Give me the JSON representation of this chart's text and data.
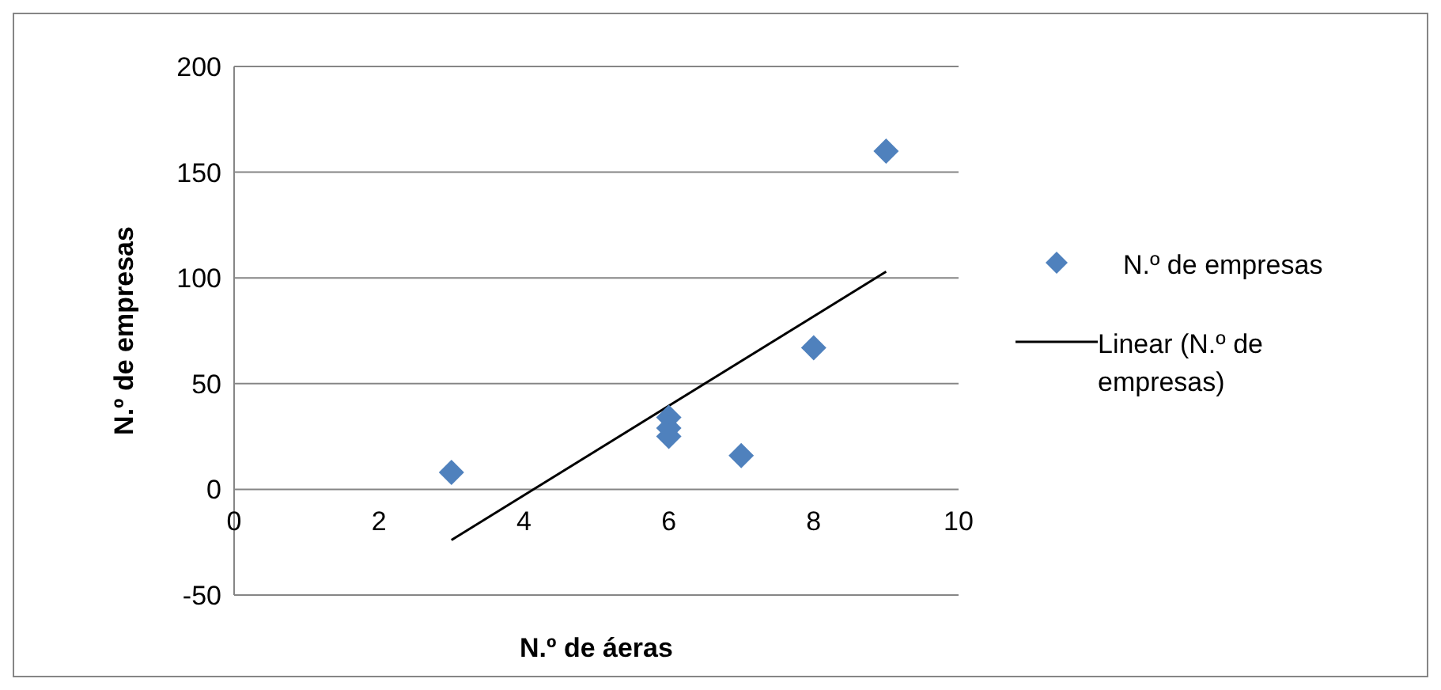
{
  "chart_data": {
    "type": "scatter",
    "xlabel": "N.º de áeras",
    "ylabel": "N.º de empresas",
    "xlim": [
      0,
      10
    ],
    "xticks": [
      0,
      2,
      4,
      6,
      8,
      10
    ],
    "ylim": [
      -50,
      200
    ],
    "yticks": [
      -50,
      0,
      50,
      100,
      150,
      200
    ],
    "grid": "y",
    "legend": "right",
    "series": [
      {
        "name": "N.º de empresas",
        "type": "scatter",
        "marker": "diamond",
        "color": "#4f81bd",
        "x": [
          3,
          6,
          6,
          6,
          7,
          8,
          9
        ],
        "values": [
          8,
          34,
          29,
          25,
          16,
          67,
          160
        ]
      },
      {
        "name": "Linear (N.º de empresas)",
        "type": "line",
        "marker": "none",
        "color": "#000000",
        "x": [
          3,
          9
        ],
        "values": [
          -24,
          103
        ]
      }
    ]
  }
}
